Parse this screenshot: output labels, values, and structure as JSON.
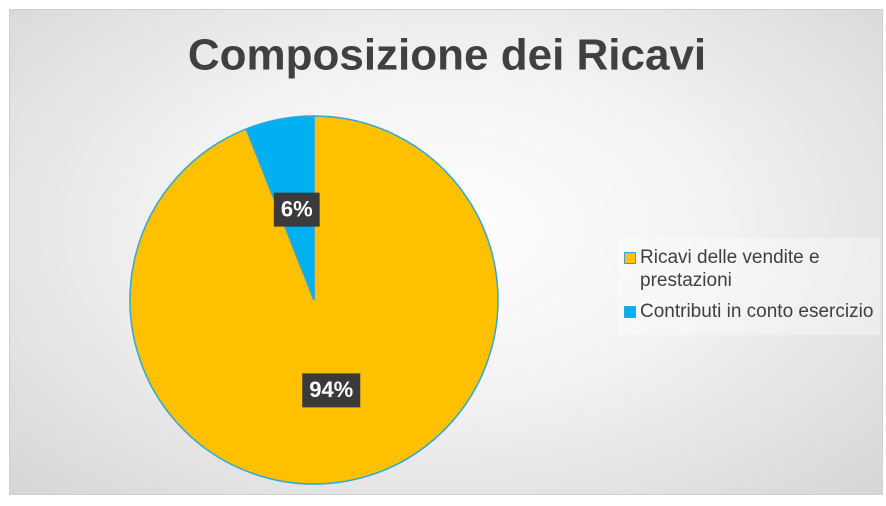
{
  "chart_data": {
    "type": "pie",
    "title": "Composizione dei Ricavi",
    "categories": [
      "Ricavi delle vendite e prestazioni",
      "Contributi in conto esercizio"
    ],
    "values": [
      94,
      6
    ],
    "value_labels": [
      "94%",
      "6%"
    ],
    "colors": [
      "#FFC000",
      "#00B0F0"
    ],
    "legend": "right"
  }
}
